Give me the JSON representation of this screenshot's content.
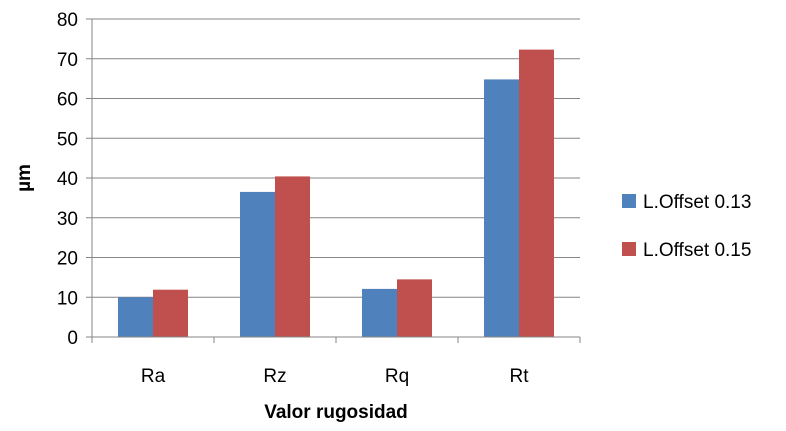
{
  "chart_data": {
    "type": "bar",
    "xlabel": "Valor rugosidad",
    "ylabel": "µm",
    "ylim": [
      0,
      80
    ],
    "yticks": [
      0,
      10,
      20,
      30,
      40,
      50,
      60,
      70,
      80
    ],
    "grid": true,
    "legend_position": "right",
    "categories": [
      "Ra",
      "Rz",
      "Rq",
      "Rt"
    ],
    "series": [
      {
        "name": "L.Offset 0.13",
        "color": "#4F81BD",
        "values": [
          10.0,
          36.5,
          12.1,
          64.8
        ]
      },
      {
        "name": "L.Offset 0.15",
        "color": "#C0504D",
        "values": [
          11.9,
          40.4,
          14.5,
          72.3
        ]
      }
    ]
  }
}
